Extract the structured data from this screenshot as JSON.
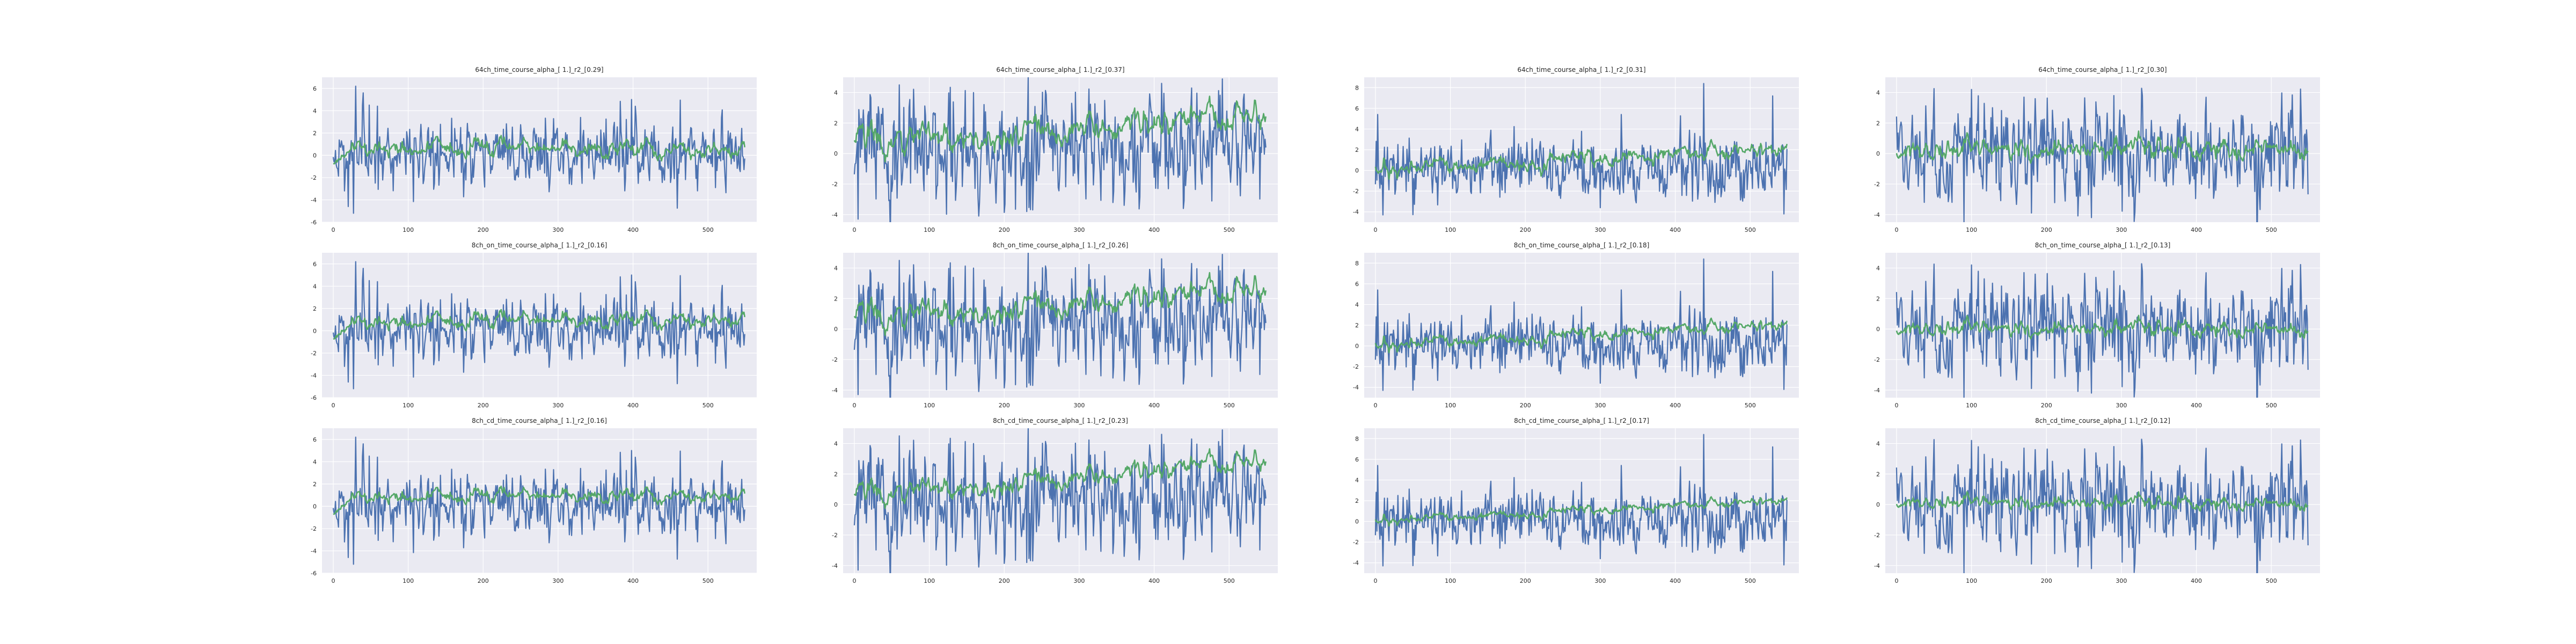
{
  "figure": {
    "background": "#ffffff",
    "axes_facecolor": "#eaeaf2",
    "grid_color": "#ffffff",
    "colors": {
      "measured": "#4c72b0",
      "predicted": "#55a868"
    }
  },
  "chart_data": [
    {
      "type": "line",
      "title": "64ch_time_course_alpha_[ 1.]_r2_[0.29]",
      "xlim": [
        -15,
        565
      ],
      "ylim": [
        -6,
        7
      ],
      "xticks": [
        0,
        100,
        200,
        300,
        400,
        500
      ],
      "yticks": [
        -6,
        -4,
        -2,
        0,
        2,
        4,
        6
      ],
      "grid": true,
      "n_points": 550,
      "seed": 11,
      "blue": {
        "amp": 1.3,
        "mean": 0.2,
        "spikes": [
          [
            15,
            -3.2
          ],
          [
            20,
            -4.6
          ],
          [
            27,
            -5.2
          ],
          [
            30,
            6.2
          ],
          [
            40,
            5.6
          ],
          [
            48,
            4.5
          ],
          [
            330,
            3.4
          ],
          [
            398,
            5.0
          ]
        ]
      },
      "green": {
        "base": 0.5,
        "trend": 0.3,
        "amp": 0.45,
        "startRise": true
      }
    },
    {
      "type": "line",
      "title": "64ch_time_course_alpha_[ 1.]_r2_[0.37]",
      "xlim": [
        -15,
        565
      ],
      "ylim": [
        -4.5,
        5
      ],
      "xticks": [
        0,
        100,
        200,
        300,
        400,
        500
      ],
      "yticks": [
        -4,
        -2,
        0,
        2,
        4
      ],
      "grid": true,
      "n_points": 550,
      "seed": 23,
      "blue": {
        "amp": 1.5,
        "mean": 0.3,
        "spikes": [
          [
            5,
            -4.3
          ],
          [
            60,
            4.5
          ],
          [
            230,
            -3.8
          ],
          [
            360,
            -3.4
          ],
          [
            410,
            4.6
          ],
          [
            520,
            3.9
          ]
        ]
      },
      "green": {
        "base": 0.6,
        "trend": 1.8,
        "amp": 0.55,
        "startRise": false
      }
    },
    {
      "type": "line",
      "title": "64ch_time_course_alpha_[ 1.]_r2_[0.31]",
      "xlim": [
        -15,
        565
      ],
      "ylim": [
        -5,
        9
      ],
      "xticks": [
        0,
        100,
        200,
        300,
        400,
        500
      ],
      "yticks": [
        -4,
        -2,
        0,
        2,
        4,
        6,
        8
      ],
      "grid": true,
      "n_points": 550,
      "seed": 37,
      "blue": {
        "amp": 1.3,
        "mean": 0.1,
        "spikes": [
          [
            3,
            5.4
          ],
          [
            10,
            -4.3
          ],
          [
            300,
            -3.6
          ],
          [
            438,
            8.4
          ],
          [
            530,
            7.2
          ],
          [
            545,
            -4.2
          ]
        ]
      },
      "green": {
        "base": 0.0,
        "trend": 2.0,
        "amp": 0.45,
        "startRise": false
      }
    },
    {
      "type": "line",
      "title": "64ch_time_course_alpha_[ 1.]_r2_[0.30]",
      "xlim": [
        -15,
        565
      ],
      "ylim": [
        -4.5,
        5
      ],
      "xticks": [
        0,
        100,
        200,
        300,
        400,
        500
      ],
      "yticks": [
        -4,
        -2,
        0,
        2,
        4
      ],
      "grid": true,
      "n_points": 550,
      "seed": 41,
      "blue": {
        "amp": 1.4,
        "mean": 0.1,
        "spikes": [
          [
            90,
            -4.5
          ],
          [
            100,
            4.2
          ],
          [
            180,
            -3.9
          ],
          [
            260,
            -4.2
          ],
          [
            290,
            3.8
          ]
        ]
      },
      "green": {
        "base": 0.3,
        "trend": -0.2,
        "amp": 0.4,
        "startRise": false
      }
    },
    {
      "type": "line",
      "title": "8ch_on_time_course_alpha_[ 1.]_r2_[0.16]",
      "xlim": [
        -15,
        565
      ],
      "ylim": [
        -6,
        7
      ],
      "xticks": [
        0,
        100,
        200,
        300,
        400,
        500
      ],
      "yticks": [
        -6,
        -4,
        -2,
        0,
        2,
        4,
        6
      ],
      "grid": true,
      "n_points": 550,
      "seed": 11,
      "blue": {
        "amp": 1.3,
        "mean": 0.2,
        "spikes": [
          [
            15,
            -3.2
          ],
          [
            20,
            -4.6
          ],
          [
            27,
            -5.2
          ],
          [
            30,
            6.2
          ],
          [
            40,
            5.6
          ],
          [
            48,
            4.5
          ],
          [
            330,
            3.4
          ],
          [
            398,
            5.0
          ]
        ]
      },
      "green": {
        "base": 0.6,
        "trend": 0.7,
        "amp": 0.4,
        "startRise": true
      }
    },
    {
      "type": "line",
      "title": "8ch_on_time_course_alpha_[ 1.]_r2_[0.26]",
      "xlim": [
        -15,
        565
      ],
      "ylim": [
        -4.5,
        5
      ],
      "xticks": [
        0,
        100,
        200,
        300,
        400,
        500
      ],
      "yticks": [
        -4,
        -2,
        0,
        2,
        4
      ],
      "grid": true,
      "n_points": 550,
      "seed": 23,
      "blue": {
        "amp": 1.5,
        "mean": 0.3,
        "spikes": [
          [
            5,
            -4.3
          ],
          [
            60,
            4.5
          ],
          [
            230,
            -3.8
          ],
          [
            360,
            -3.4
          ],
          [
            410,
            4.6
          ],
          [
            520,
            3.9
          ]
        ]
      },
      "green": {
        "base": 0.6,
        "trend": 1.9,
        "amp": 0.5,
        "startRise": false
      }
    },
    {
      "type": "line",
      "title": "8ch_on_time_course_alpha_[ 1.]_r2_[0.18]",
      "xlim": [
        -15,
        565
      ],
      "ylim": [
        -5,
        9
      ],
      "xticks": [
        0,
        100,
        200,
        300,
        400,
        500
      ],
      "yticks": [
        -4,
        -2,
        0,
        2,
        4,
        6,
        8
      ],
      "grid": true,
      "n_points": 550,
      "seed": 37,
      "blue": {
        "amp": 1.3,
        "mean": 0.1,
        "spikes": [
          [
            3,
            5.4
          ],
          [
            10,
            -4.3
          ],
          [
            300,
            -3.6
          ],
          [
            438,
            8.4
          ],
          [
            530,
            7.2
          ],
          [
            545,
            -4.2
          ]
        ]
      },
      "green": {
        "base": 0.0,
        "trend": 2.0,
        "amp": 0.35,
        "startRise": false
      }
    },
    {
      "type": "line",
      "title": "8ch_on_time_course_alpha_[ 1.]_r2_[0.13]",
      "xlim": [
        -15,
        565
      ],
      "ylim": [
        -4.5,
        5
      ],
      "xticks": [
        0,
        100,
        200,
        300,
        400,
        500
      ],
      "yticks": [
        -4,
        -2,
        0,
        2,
        4
      ],
      "grid": true,
      "n_points": 550,
      "seed": 41,
      "blue": {
        "amp": 1.4,
        "mean": 0.1,
        "spikes": [
          [
            90,
            -4.5
          ],
          [
            100,
            4.2
          ],
          [
            180,
            -3.9
          ],
          [
            260,
            -4.2
          ],
          [
            290,
            3.8
          ]
        ]
      },
      "green": {
        "base": 0.1,
        "trend": -0.3,
        "amp": 0.3,
        "startRise": false
      }
    },
    {
      "type": "line",
      "title": "8ch_cd_time_course_alpha_[ 1.]_r2_[0.16]",
      "xlim": [
        -15,
        565
      ],
      "ylim": [
        -6,
        7
      ],
      "xticks": [
        0,
        100,
        200,
        300,
        400,
        500
      ],
      "yticks": [
        -6,
        -4,
        -2,
        0,
        2,
        4,
        6
      ],
      "grid": true,
      "n_points": 550,
      "seed": 11,
      "blue": {
        "amp": 1.3,
        "mean": 0.2,
        "spikes": [
          [
            15,
            -3.2
          ],
          [
            20,
            -4.6
          ],
          [
            27,
            -5.2
          ],
          [
            30,
            6.2
          ],
          [
            40,
            5.6
          ],
          [
            48,
            4.5
          ],
          [
            330,
            3.4
          ],
          [
            398,
            5.0
          ]
        ]
      },
      "green": {
        "base": 0.7,
        "trend": 0.5,
        "amp": 0.35,
        "startRise": true
      }
    },
    {
      "type": "line",
      "title": "8ch_cd_time_course_alpha_[ 1.]_r2_[0.23]",
      "xlim": [
        -15,
        565
      ],
      "ylim": [
        -4.5,
        5
      ],
      "xticks": [
        0,
        100,
        200,
        300,
        400,
        500
      ],
      "yticks": [
        -4,
        -2,
        0,
        2,
        4
      ],
      "grid": true,
      "n_points": 550,
      "seed": 23,
      "blue": {
        "amp": 1.5,
        "mean": 0.3,
        "spikes": [
          [
            5,
            -4.3
          ],
          [
            60,
            4.5
          ],
          [
            230,
            -3.8
          ],
          [
            360,
            -3.4
          ],
          [
            410,
            4.6
          ],
          [
            520,
            3.9
          ]
        ]
      },
      "green": {
        "base": 0.5,
        "trend": 2.3,
        "amp": 0.4,
        "startRise": false
      }
    },
    {
      "type": "line",
      "title": "8ch_cd_time_course_alpha_[ 1.]_r2_[0.17]",
      "xlim": [
        -15,
        565
      ],
      "ylim": [
        -5,
        9
      ],
      "xticks": [
        0,
        100,
        200,
        300,
        400,
        500
      ],
      "yticks": [
        -4,
        -2,
        0,
        2,
        4,
        6,
        8
      ],
      "grid": true,
      "n_points": 550,
      "seed": 37,
      "blue": {
        "amp": 1.3,
        "mean": 0.1,
        "spikes": [
          [
            3,
            5.4
          ],
          [
            10,
            -4.3
          ],
          [
            300,
            -3.6
          ],
          [
            438,
            8.4
          ],
          [
            530,
            7.2
          ],
          [
            545,
            -4.2
          ]
        ]
      },
      "green": {
        "base": 0.0,
        "trend": 2.0,
        "amp": 0.25,
        "startRise": false
      }
    },
    {
      "type": "line",
      "title": "8ch_cd_time_course_alpha_[ 1.]_r2_[0.12]",
      "xlim": [
        -15,
        565
      ],
      "ylim": [
        -4.5,
        5
      ],
      "xticks": [
        0,
        100,
        200,
        300,
        400,
        500
      ],
      "yticks": [
        -4,
        -2,
        0,
        2,
        4
      ],
      "grid": true,
      "n_points": 550,
      "seed": 41,
      "blue": {
        "amp": 1.4,
        "mean": 0.1,
        "spikes": [
          [
            90,
            -4.5
          ],
          [
            100,
            4.2
          ],
          [
            180,
            -3.9
          ],
          [
            260,
            -4.2
          ],
          [
            290,
            3.8
          ]
        ]
      },
      "green": {
        "base": 0.2,
        "trend": -0.3,
        "amp": 0.25,
        "startRise": false
      }
    }
  ]
}
